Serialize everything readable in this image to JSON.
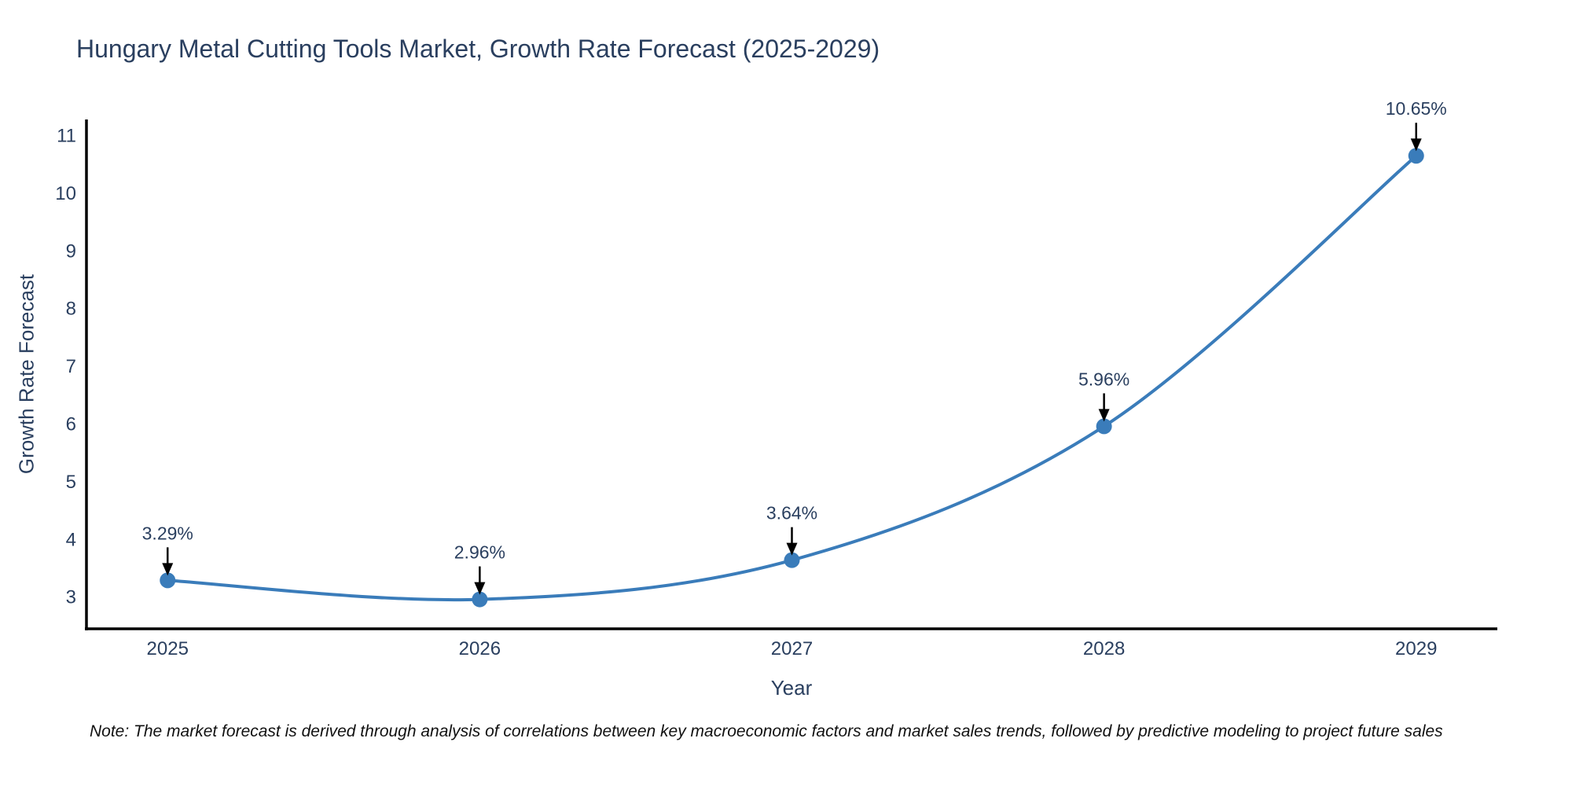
{
  "chart_data": {
    "type": "line",
    "title": "Hungary Metal Cutting Tools Market, Growth Rate Forecast (2025-2029)",
    "xlabel": "Year",
    "ylabel": "Growth Rate Forecast",
    "x": [
      2025,
      2026,
      2027,
      2028,
      2029
    ],
    "series": [
      {
        "name": "Growth Rate Forecast",
        "values": [
          3.29,
          2.96,
          3.64,
          5.96,
          10.65
        ],
        "point_labels": [
          "3.29%",
          "2.96%",
          "3.64%",
          "5.96%",
          "10.65%"
        ]
      }
    ],
    "yticks": [
      3,
      4,
      5,
      6,
      7,
      8,
      9,
      10,
      11
    ],
    "ylim": [
      2.45,
      11.28
    ],
    "xlim": [
      2024.74,
      2029.26
    ],
    "grid": false,
    "legend": "none",
    "line_shape": "spline",
    "line_color": "#3a7cba",
    "marker_color": "#3a7cba",
    "axis_color": "#000000",
    "text_color": "#2a3f5f",
    "annotation_arrow_color": "#000000",
    "note": "Note: The market forecast is derived through analysis of correlations between key macroeconomic factors and market sales trends, followed by predictive modeling to project future sales"
  }
}
